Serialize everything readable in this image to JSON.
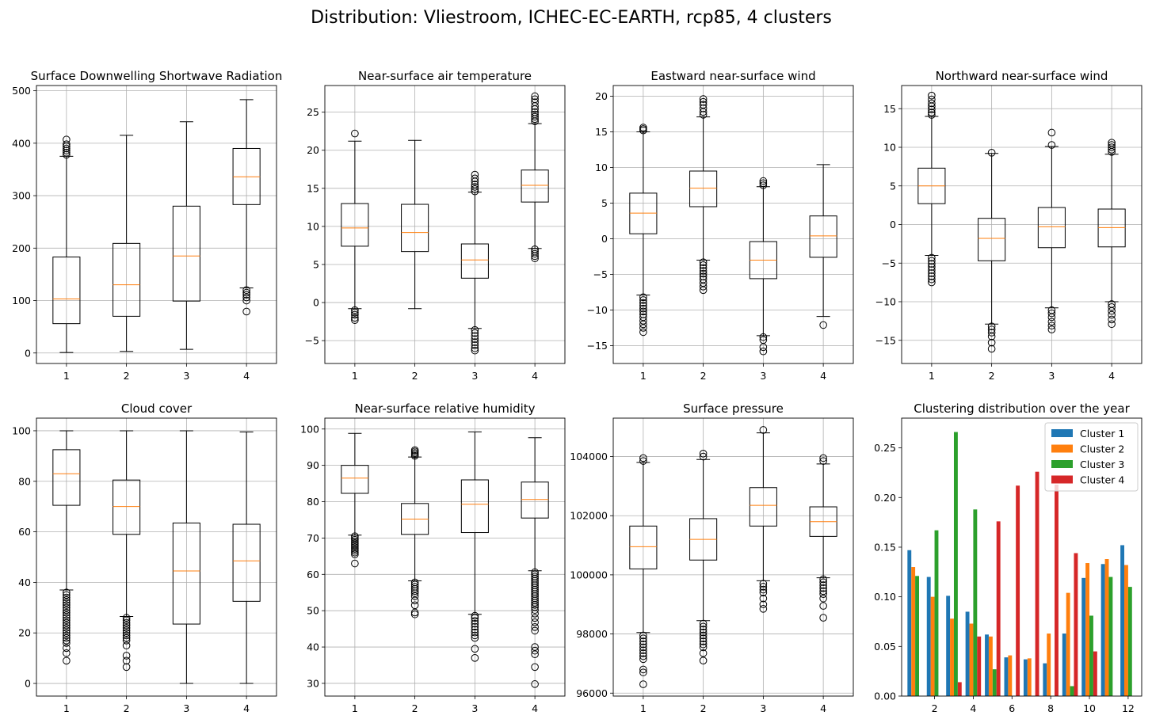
{
  "figure": {
    "title": "Distribution: Vliestroom, ICHEC-EC-EARTH, rcp85, 4 clusters"
  },
  "colors": {
    "box": "#000000",
    "median": "#ff7f0e",
    "grid": "#b0b0b0",
    "cluster1": "#1f77b4",
    "cluster2": "#ff7f0e",
    "cluster3": "#2ca02c",
    "cluster4": "#d62728"
  },
  "chart_data": [
    {
      "type": "box",
      "title": "Surface Downwelling Shortwave Radiation",
      "categories": [
        "1",
        "2",
        "3",
        "4"
      ],
      "ylim": [
        -20,
        510
      ],
      "yticks": [
        0,
        100,
        200,
        300,
        400,
        500
      ],
      "ytick_labels": [
        "0",
        "100",
        "200",
        "300",
        "400",
        "500"
      ],
      "grid": true,
      "boxes": [
        {
          "whislo": 1,
          "q1": 56,
          "med": 103,
          "q3": 183,
          "whishi": 375,
          "fliers": [
            378,
            382,
            386,
            390,
            394,
            398,
            407
          ]
        },
        {
          "whislo": 3,
          "q1": 70,
          "med": 130,
          "q3": 209,
          "whishi": 415,
          "fliers": []
        },
        {
          "whislo": 7,
          "q1": 99,
          "med": 185,
          "q3": 280,
          "whishi": 441,
          "fliers": []
        },
        {
          "whislo": 124,
          "q1": 283,
          "med": 336,
          "q3": 390,
          "whishi": 483,
          "fliers": [
            79,
            100,
            106,
            111,
            115,
            120
          ]
        }
      ]
    },
    {
      "type": "box",
      "title": "Near-surface air temperature",
      "categories": [
        "1",
        "2",
        "3",
        "4"
      ],
      "ylim": [
        -8,
        28.5
      ],
      "yticks": [
        -5,
        0,
        5,
        10,
        15,
        20,
        25
      ],
      "ytick_labels": [
        "−5",
        "0",
        "5",
        "10",
        "15",
        "20",
        "25"
      ],
      "grid": true,
      "boxes": [
        {
          "whislo": -0.8,
          "q1": 7.4,
          "med": 9.8,
          "q3": 13.0,
          "whishi": 21.2,
          "fliers": [
            -1.0,
            -1.3,
            -1.6,
            -2.0,
            -2.3,
            22.2
          ]
        },
        {
          "whislo": -0.8,
          "q1": 6.7,
          "med": 9.2,
          "q3": 12.9,
          "whishi": 21.3,
          "fliers": []
        },
        {
          "whislo": -3.4,
          "q1": 3.2,
          "med": 5.6,
          "q3": 7.7,
          "whishi": 14.5,
          "fliers": [
            -3.6,
            -4.0,
            -4.4,
            -4.8,
            -5.2,
            -5.6,
            -6.0,
            -6.3,
            14.6,
            14.9,
            15.2,
            15.5,
            15.9,
            16.3,
            16.8
          ]
        },
        {
          "whislo": 7.1,
          "q1": 13.2,
          "med": 15.4,
          "q3": 17.4,
          "whishi": 23.5,
          "fliers": [
            5.8,
            6.1,
            6.4,
            6.7,
            7.0,
            23.8,
            24.1,
            24.4,
            24.7,
            25.0,
            25.4,
            25.8,
            26.3,
            26.7,
            27.1
          ]
        }
      ]
    },
    {
      "type": "box",
      "title": "Eastward near-surface wind",
      "categories": [
        "1",
        "2",
        "3",
        "4"
      ],
      "ylim": [
        -17.5,
        21.5
      ],
      "yticks": [
        -15,
        -10,
        -5,
        0,
        5,
        10,
        15,
        20
      ],
      "ytick_labels": [
        "−15",
        "−10",
        "−5",
        "0",
        "5",
        "10",
        "15",
        "20"
      ],
      "grid": true,
      "boxes": [
        {
          "whislo": -7.9,
          "q1": 0.7,
          "med": 3.6,
          "q3": 6.4,
          "whishi": 15.0,
          "fliers": [
            -8.2,
            -8.6,
            -9.0,
            -9.4,
            -9.8,
            -10.2,
            -10.6,
            -11.0,
            -11.5,
            -12.0,
            -12.5,
            -13.1,
            15.2,
            15.4,
            15.6
          ]
        },
        {
          "whislo": -3.0,
          "q1": 4.5,
          "med": 7.1,
          "q3": 9.5,
          "whishi": 17.1,
          "fliers": [
            -3.3,
            -3.7,
            -4.1,
            -4.5,
            -4.9,
            -5.3,
            -5.7,
            -6.2,
            -6.7,
            -7.2,
            17.4,
            17.8,
            18.3,
            18.8,
            19.2,
            19.6
          ]
        },
        {
          "whislo": -13.6,
          "q1": -5.6,
          "med": -3.0,
          "q3": -0.4,
          "whishi": 7.3,
          "fliers": [
            7.5,
            7.8,
            8.1,
            -13.8,
            -14.2,
            -15.2,
            -15.8
          ]
        },
        {
          "whislo": -10.9,
          "q1": -2.6,
          "med": 0.4,
          "q3": 3.2,
          "whishi": 10.4,
          "fliers": [
            -12.1
          ]
        }
      ]
    },
    {
      "type": "box",
      "title": "Northward near-surface wind",
      "categories": [
        "1",
        "2",
        "3",
        "4"
      ],
      "ylim": [
        -18,
        18
      ],
      "yticks": [
        -15,
        -10,
        -5,
        0,
        5,
        10,
        15
      ],
      "ytick_labels": [
        "−15",
        "−10",
        "−5",
        "0",
        "5",
        "10",
        "15"
      ],
      "grid": true,
      "boxes": [
        {
          "whislo": -4.0,
          "q1": 2.7,
          "med": 5.0,
          "q3": 7.3,
          "whishi": 14.0,
          "fliers": [
            -4.3,
            -4.7,
            -5.1,
            -5.5,
            -5.9,
            -6.3,
            -6.7,
            -7.1,
            -7.5,
            14.2,
            14.5,
            14.9,
            15.3,
            15.7,
            16.2,
            16.7
          ]
        },
        {
          "whislo": -12.9,
          "q1": -4.7,
          "med": -1.8,
          "q3": 0.8,
          "whishi": 9.2,
          "fliers": [
            9.3,
            -13.2,
            -13.6,
            -14.0,
            -14.5,
            -15.3,
            -16.1
          ]
        },
        {
          "whislo": -10.8,
          "q1": -3.0,
          "med": -0.3,
          "q3": 2.2,
          "whishi": 10.1,
          "fliers": [
            10.3,
            11.9,
            -11.1,
            -11.5,
            -12.0,
            -12.6,
            -13.1,
            -13.6
          ]
        },
        {
          "whislo": -10.0,
          "q1": -2.9,
          "med": -0.4,
          "q3": 2.0,
          "whishi": 9.1,
          "fliers": [
            9.4,
            9.7,
            10.0,
            10.3,
            10.6,
            -10.3,
            -10.7,
            -11.2,
            -11.7,
            -12.3,
            -12.9
          ]
        }
      ]
    },
    {
      "type": "box",
      "title": "Cloud cover",
      "categories": [
        "1",
        "2",
        "3",
        "4"
      ],
      "ylim": [
        -5,
        105
      ],
      "yticks": [
        0,
        20,
        40,
        60,
        80,
        100
      ],
      "ytick_labels": [
        "0",
        "20",
        "40",
        "60",
        "80",
        "100"
      ],
      "grid": true,
      "boxes": [
        {
          "whislo": 37,
          "q1": 70.5,
          "med": 83,
          "q3": 92.5,
          "whishi": 100,
          "fliers": [
            36,
            35,
            34,
            33,
            32,
            31,
            30,
            29,
            28,
            27,
            26,
            25,
            24,
            23,
            22,
            21,
            20,
            19,
            18,
            17,
            16,
            14,
            12,
            9
          ]
        },
        {
          "whislo": 26.5,
          "q1": 59,
          "med": 70,
          "q3": 80.5,
          "whishi": 100,
          "fliers": [
            26,
            25,
            24,
            23,
            22,
            21,
            20,
            19,
            18,
            17,
            15,
            11,
            9,
            6.5
          ]
        },
        {
          "whislo": 0,
          "q1": 23.5,
          "med": 44.5,
          "q3": 63.5,
          "whishi": 100,
          "fliers": []
        },
        {
          "whislo": 0,
          "q1": 32.5,
          "med": 48.5,
          "q3": 63,
          "whishi": 99.5,
          "fliers": []
        }
      ]
    },
    {
      "type": "box",
      "title": "Near-surface relative humidity",
      "categories": [
        "1",
        "2",
        "3",
        "4"
      ],
      "ylim": [
        26.5,
        103
      ],
      "yticks": [
        30,
        40,
        50,
        60,
        70,
        80,
        90,
        100
      ],
      "ytick_labels": [
        "30",
        "40",
        "50",
        "60",
        "70",
        "80",
        "90",
        "100"
      ],
      "grid": true,
      "boxes": [
        {
          "whislo": 70.8,
          "q1": 82.3,
          "med": 86.5,
          "q3": 90.0,
          "whishi": 98.8,
          "fliers": [
            70.5,
            70.0,
            69.5,
            69.0,
            68.5,
            68.0,
            67.5,
            67.0,
            66.5,
            66.0,
            65.5,
            63.0
          ]
        },
        {
          "whislo": 58.2,
          "q1": 71.0,
          "med": 75.2,
          "q3": 79.5,
          "whishi": 92.3,
          "fliers": [
            92.6,
            93.0,
            93.4,
            93.8,
            94.2,
            57.8,
            57.2,
            56.6,
            56.0,
            55.4,
            54.8,
            54.0,
            52.8,
            51.5,
            49.5,
            49.0
          ]
        },
        {
          "whislo": 49.0,
          "q1": 71.5,
          "med": 79.3,
          "q3": 86.0,
          "whishi": 99.2,
          "fliers": [
            48.6,
            48.0,
            47.2,
            46.4,
            45.6,
            44.8,
            44.0,
            43.2,
            42.5,
            39.5,
            37.0
          ]
        },
        {
          "whislo": 61.0,
          "q1": 75.5,
          "med": 80.6,
          "q3": 85.4,
          "whishi": 97.6,
          "fliers": [
            60.6,
            60.0,
            59.4,
            58.8,
            58.2,
            57.6,
            57.0,
            56.4,
            55.8,
            55.2,
            54.6,
            54.0,
            53.4,
            52.8,
            52.2,
            51.6,
            51.0,
            50.2,
            49.2,
            48.0,
            46.8,
            45.5,
            44.5,
            40.0,
            39.0,
            38.0,
            34.5,
            29.8
          ]
        }
      ]
    },
    {
      "type": "box",
      "title": "Surface pressure",
      "categories": [
        "1",
        "2",
        "3",
        "4"
      ],
      "ylim": [
        95900,
        105300
      ],
      "yticks": [
        96000,
        98000,
        100000,
        102000,
        104000
      ],
      "ytick_labels": [
        "96000",
        "98000",
        "100000",
        "102000",
        "104000"
      ],
      "grid": true,
      "boxes": [
        {
          "whislo": 98050,
          "q1": 100200,
          "med": 100950,
          "q3": 101650,
          "whishi": 103800,
          "fliers": [
            103850,
            103950,
            97950,
            97850,
            97750,
            97650,
            97550,
            97450,
            97350,
            97250,
            97150,
            96800,
            96700,
            96300
          ]
        },
        {
          "whislo": 98450,
          "q1": 100500,
          "med": 101200,
          "q3": 101900,
          "whishi": 103900,
          "fliers": [
            104000,
            104100,
            98350,
            98250,
            98150,
            98050,
            97950,
            97850,
            97750,
            97650,
            97550,
            97350,
            97100
          ]
        },
        {
          "whislo": 99800,
          "q1": 101650,
          "med": 102350,
          "q3": 102950,
          "whishi": 104800,
          "fliers": [
            104900,
            99700,
            99600,
            99500,
            99400,
            99200,
            99000,
            98850
          ]
        },
        {
          "whislo": 99900,
          "q1": 101300,
          "med": 101800,
          "q3": 102300,
          "whishi": 103750,
          "fliers": [
            103850,
            103950,
            99850,
            99750,
            99650,
            99550,
            99450,
            99350,
            99200,
            98950,
            98550
          ]
        }
      ]
    },
    {
      "type": "bar",
      "title": "Clustering distribution over the year",
      "x": [
        1,
        2,
        3,
        4,
        5,
        6,
        7,
        8,
        9,
        10,
        11,
        12
      ],
      "xticks": [
        2,
        4,
        6,
        8,
        10,
        12
      ],
      "xlim": [
        0.3,
        12.7
      ],
      "ylim": [
        0,
        0.28
      ],
      "yticks": [
        0,
        0.05,
        0.1,
        0.15,
        0.2,
        0.25
      ],
      "ytick_labels": [
        "0.00",
        "0.05",
        "0.10",
        "0.15",
        "0.20",
        "0.25"
      ],
      "grid": false,
      "legend_position": "top-right",
      "series": [
        {
          "name": "Cluster 1",
          "values": [
            0.147,
            0.12,
            0.101,
            0.085,
            0.062,
            0.039,
            0.037,
            0.033,
            0.063,
            0.119,
            0.133,
            0.152
          ]
        },
        {
          "name": "Cluster 2",
          "values": [
            0.13,
            0.1,
            0.078,
            0.073,
            0.06,
            0.041,
            0.038,
            0.063,
            0.104,
            0.134,
            0.138,
            0.132
          ]
        },
        {
          "name": "Cluster 3",
          "values": [
            0.121,
            0.167,
            0.266,
            0.188,
            0.027,
            0.0,
            0.0,
            0.0,
            0.01,
            0.081,
            0.12,
            0.11
          ]
        },
        {
          "name": "Cluster 4",
          "values": [
            0.0,
            0.0,
            0.014,
            0.06,
            0.176,
            0.212,
            0.226,
            0.213,
            0.144,
            0.045,
            0.0,
            0.0
          ]
        }
      ]
    }
  ]
}
